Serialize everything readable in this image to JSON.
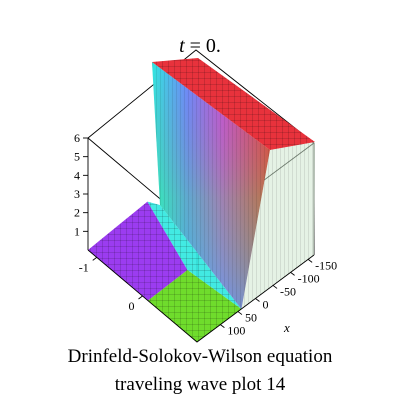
{
  "chart_data": {
    "type": "surface",
    "title": "t = 0.",
    "title_var": "t",
    "title_rest": " = 0.",
    "caption": [
      "Drinfeld-Solokov-Wilson equation",
      "traveling wave plot 14"
    ],
    "xlabel": "x",
    "x_ticks": [
      "-150",
      "-100",
      "-50",
      "0",
      "50",
      "100"
    ],
    "y_ticks": [
      "-1",
      "0"
    ],
    "z_ticks": [
      "1",
      "2",
      "3",
      "4",
      "5",
      "6"
    ],
    "x_range": [
      -150,
      150
    ],
    "z_range": [
      0,
      6
    ],
    "surface": {
      "description_values": {
        "low_plateau": 0,
        "high_plateau": 6,
        "front_x": 0
      },
      "colors": {
        "low_plateau_a": "#9b3cf0",
        "low_plateau_b": "#6fdc2c",
        "front": "#2ee8e0",
        "high_plateau": "#e8323c"
      }
    }
  }
}
